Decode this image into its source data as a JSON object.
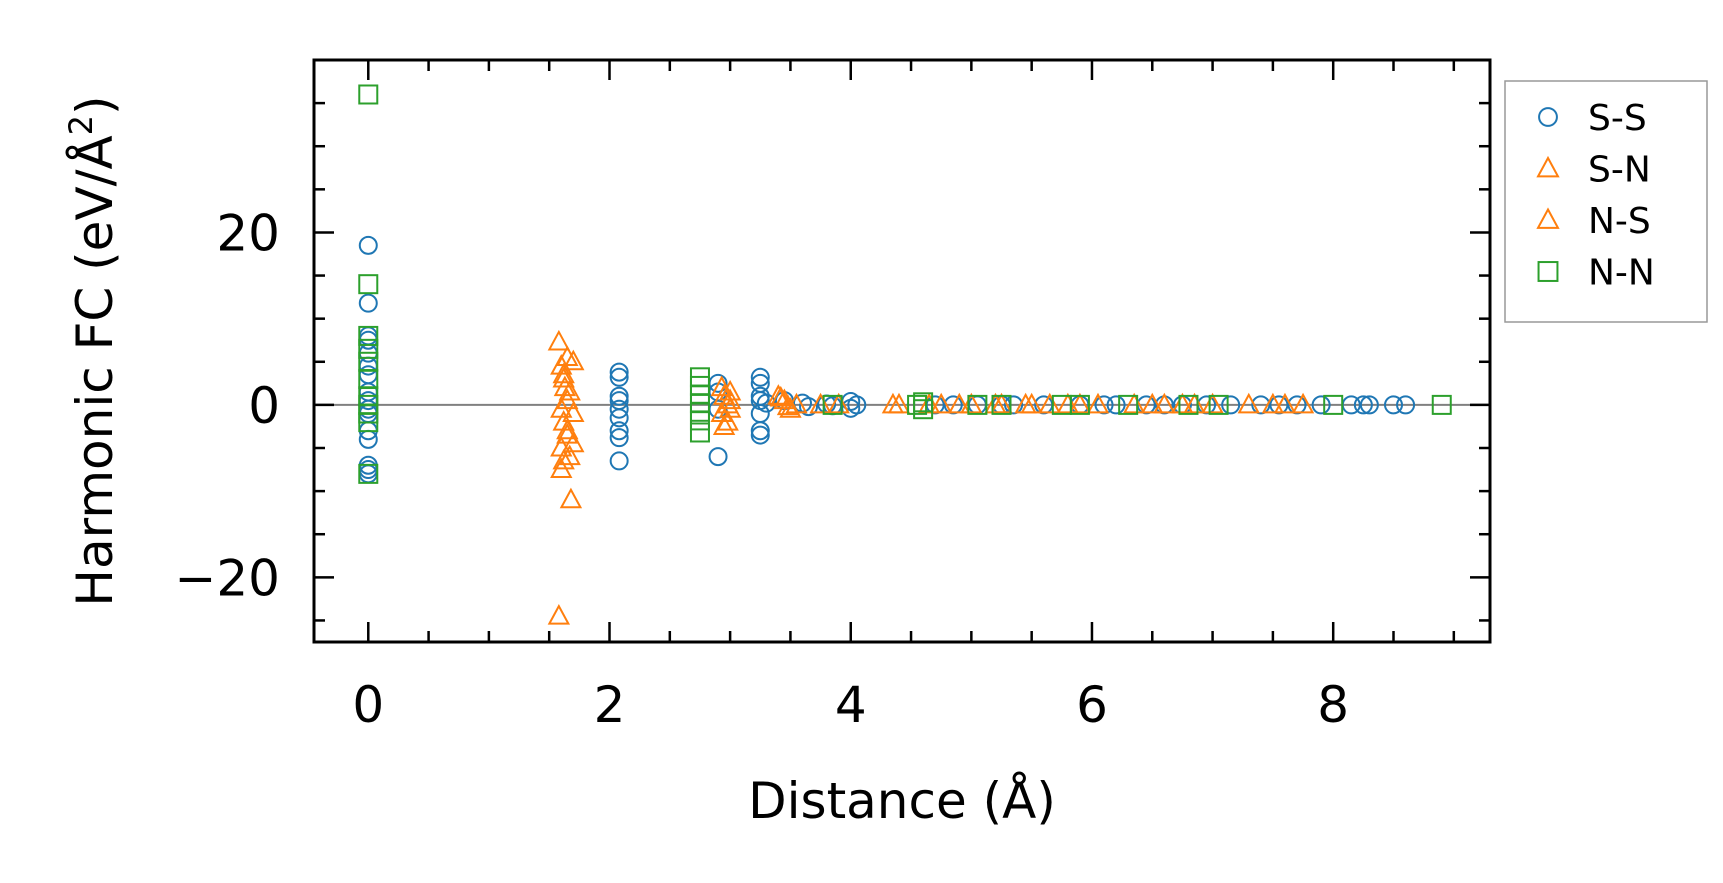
{
  "chart_data": {
    "type": "scatter",
    "title": "",
    "xlabel": "Distance (Å)",
    "ylabel_main": "Harmonic FC (eV/Å",
    "ylabel_sup": "2",
    "ylabel_close": ")",
    "xlim": [
      -0.45,
      9.3
    ],
    "ylim": [
      -27.5,
      40
    ],
    "xticks": [
      0,
      2,
      4,
      6,
      8
    ],
    "xtick_labels": [
      "0",
      "2",
      "4",
      "6",
      "8"
    ],
    "yticks": [
      -20,
      0,
      20
    ],
    "ytick_labels": [
      "−20",
      "0",
      "20"
    ],
    "zero_line": true,
    "grid": false,
    "legend_position": "outside-right-top",
    "series": [
      {
        "name": "S-S",
        "marker": "circle",
        "color": "#1f77b4",
        "points": [
          [
            0,
            18.5
          ],
          [
            0,
            11.8
          ],
          [
            0,
            8
          ],
          [
            0,
            7.5
          ],
          [
            0,
            6
          ],
          [
            0,
            4.5
          ],
          [
            0,
            3.5
          ],
          [
            0,
            1.5
          ],
          [
            0,
            0.5
          ],
          [
            0,
            -0.5
          ],
          [
            0,
            -1
          ],
          [
            0,
            -3
          ],
          [
            0,
            -4
          ],
          [
            0,
            -7
          ],
          [
            0,
            -7.5
          ],
          [
            0,
            -8
          ],
          [
            2.08,
            3.8
          ],
          [
            2.08,
            3.2
          ],
          [
            2.08,
            1
          ],
          [
            2.08,
            0.5
          ],
          [
            2.08,
            -0.5
          ],
          [
            2.08,
            -1.5
          ],
          [
            2.08,
            -3
          ],
          [
            2.08,
            -3.8
          ],
          [
            2.08,
            -6.5
          ],
          [
            2.9,
            2.5
          ],
          [
            2.9,
            1.5
          ],
          [
            2.9,
            -0.5
          ],
          [
            2.9,
            -6
          ],
          [
            3.25,
            3.2
          ],
          [
            3.25,
            2.5
          ],
          [
            3.25,
            1
          ],
          [
            3.25,
            0.5
          ],
          [
            3.25,
            -1
          ],
          [
            3.25,
            -3
          ],
          [
            3.25,
            -3.5
          ],
          [
            3.3,
            0.2
          ],
          [
            3.45,
            0.5
          ],
          [
            3.6,
            0.2
          ],
          [
            3.65,
            -0.2
          ],
          [
            3.8,
            0.1
          ],
          [
            3.85,
            -0.1
          ],
          [
            4,
            0.4
          ],
          [
            4,
            -0.4
          ],
          [
            4.05,
            0
          ],
          [
            4.7,
            0
          ],
          [
            4.85,
            0
          ],
          [
            5.05,
            0
          ],
          [
            5.25,
            0
          ],
          [
            5.35,
            0
          ],
          [
            5.6,
            0
          ],
          [
            5.9,
            0
          ],
          [
            6.1,
            0
          ],
          [
            6.2,
            0
          ],
          [
            6.45,
            0
          ],
          [
            6.6,
            0
          ],
          [
            6.75,
            0
          ],
          [
            6.95,
            0
          ],
          [
            7.15,
            0
          ],
          [
            7.4,
            0
          ],
          [
            7.55,
            0
          ],
          [
            7.7,
            0
          ],
          [
            7.9,
            0
          ],
          [
            8.15,
            0
          ],
          [
            8.25,
            0
          ],
          [
            8.3,
            0
          ],
          [
            8.5,
            0
          ],
          [
            8.6,
            0
          ]
        ]
      },
      {
        "name": "S-N",
        "marker": "triangle",
        "color": "#ff7f0e",
        "points": [
          [
            1.58,
            7.3
          ],
          [
            1.6,
            4.5
          ],
          [
            1.62,
            3.5
          ],
          [
            1.63,
            2
          ],
          [
            1.65,
            0.5
          ],
          [
            1.6,
            -0.5
          ],
          [
            1.62,
            -2
          ],
          [
            1.65,
            -3.5
          ],
          [
            1.6,
            -5
          ],
          [
            1.62,
            -6.5
          ],
          [
            1.6,
            -7.5
          ],
          [
            1.68,
            -11
          ],
          [
            1.58,
            -24.5
          ],
          [
            2.93,
            2
          ],
          [
            2.95,
            1
          ],
          [
            2.98,
            0
          ],
          [
            2.93,
            -1
          ],
          [
            2.95,
            -2.5
          ],
          [
            3.4,
            1
          ],
          [
            3.45,
            0.5
          ],
          [
            3.5,
            -0.5
          ],
          [
            3.75,
            0
          ],
          [
            4.35,
            0
          ],
          [
            4.65,
            0
          ],
          [
            4.9,
            0
          ],
          [
            5.2,
            0
          ],
          [
            5.45,
            0
          ],
          [
            5.65,
            0
          ],
          [
            5.9,
            0
          ],
          [
            6.35,
            0
          ],
          [
            6.6,
            0
          ],
          [
            6.85,
            0
          ],
          [
            7.3,
            0
          ],
          [
            7.6,
            0
          ]
        ]
      },
      {
        "name": "N-S",
        "marker": "triangle",
        "color": "#ff7f0e",
        "points": [
          [
            1.65,
            5.5
          ],
          [
            1.7,
            5
          ],
          [
            1.62,
            3
          ],
          [
            1.67,
            1.5
          ],
          [
            1.7,
            -1
          ],
          [
            1.65,
            -3
          ],
          [
            1.7,
            -4.5
          ],
          [
            1.67,
            -6
          ],
          [
            3,
            1.5
          ],
          [
            3,
            0.5
          ],
          [
            3,
            -0.5
          ],
          [
            2.98,
            -2
          ],
          [
            3.42,
            0.8
          ],
          [
            3.48,
            -0.2
          ],
          [
            3.55,
            0
          ],
          [
            3.9,
            0
          ],
          [
            4.4,
            0
          ],
          [
            4.75,
            0
          ],
          [
            5,
            0
          ],
          [
            5.25,
            0
          ],
          [
            5.5,
            0
          ],
          [
            5.8,
            0
          ],
          [
            6.05,
            0
          ],
          [
            6.5,
            0
          ],
          [
            6.75,
            0
          ],
          [
            7,
            0
          ],
          [
            7.5,
            0
          ],
          [
            7.75,
            0
          ]
        ]
      },
      {
        "name": "N-N",
        "marker": "square",
        "color": "#2ca02c",
        "points": [
          [
            0,
            36
          ],
          [
            0,
            14
          ],
          [
            0,
            8
          ],
          [
            0,
            6.5
          ],
          [
            0,
            5
          ],
          [
            0,
            3
          ],
          [
            0,
            1
          ],
          [
            0,
            0
          ],
          [
            0,
            -1
          ],
          [
            0,
            -2
          ],
          [
            0,
            -8
          ],
          [
            2.75,
            3.2
          ],
          [
            2.75,
            2.2
          ],
          [
            2.75,
            1.2
          ],
          [
            2.75,
            0.2
          ],
          [
            2.75,
            -0.8
          ],
          [
            2.75,
            -1.8
          ],
          [
            2.75,
            -3.2
          ],
          [
            3.85,
            0
          ],
          [
            4.55,
            0
          ],
          [
            4.6,
            -0.5
          ],
          [
            4.6,
            0.3
          ],
          [
            5.05,
            0
          ],
          [
            5.25,
            0
          ],
          [
            5.75,
            0
          ],
          [
            5.9,
            0
          ],
          [
            6.3,
            0
          ],
          [
            6.8,
            0
          ],
          [
            7.05,
            0
          ],
          [
            8,
            0
          ],
          [
            8.9,
            0
          ]
        ]
      }
    ]
  }
}
